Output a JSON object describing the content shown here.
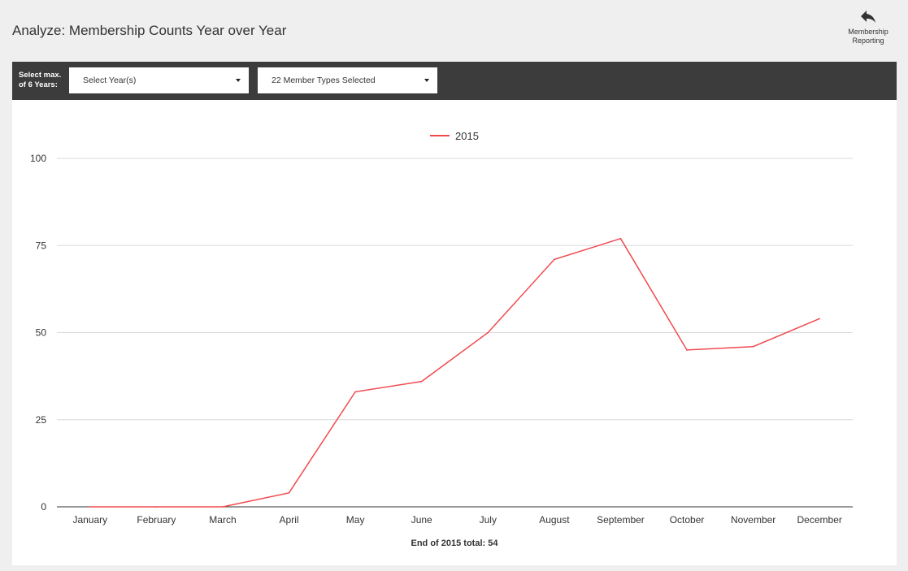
{
  "header": {
    "title": "Analyze: Membership Counts Year over Year",
    "back_link": {
      "label_line1": "Membership",
      "label_line2": "Reporting",
      "icon": "undo-arrow-icon"
    }
  },
  "filters": {
    "caption_line1": "Select max.",
    "caption_line2": "of 6 Years:",
    "year_select": {
      "value": "Select Year(s)"
    },
    "member_type_select": {
      "value": "22 Member Types Selected"
    }
  },
  "chart_data": {
    "type": "line",
    "categories": [
      "January",
      "February",
      "March",
      "April",
      "May",
      "June",
      "July",
      "August",
      "September",
      "October",
      "November",
      "December"
    ],
    "series": [
      {
        "name": "2015",
        "color": "#f04a4f",
        "values": [
          0,
          0,
          0,
          4,
          33,
          36,
          50,
          71,
          77,
          45,
          46,
          54
        ]
      }
    ],
    "ylim": [
      0,
      100
    ],
    "yticks": [
      0,
      25,
      50,
      75,
      100
    ],
    "grid": true,
    "legend": "top-center"
  },
  "footer": {
    "total_text": "End of 2015 total: 54"
  }
}
